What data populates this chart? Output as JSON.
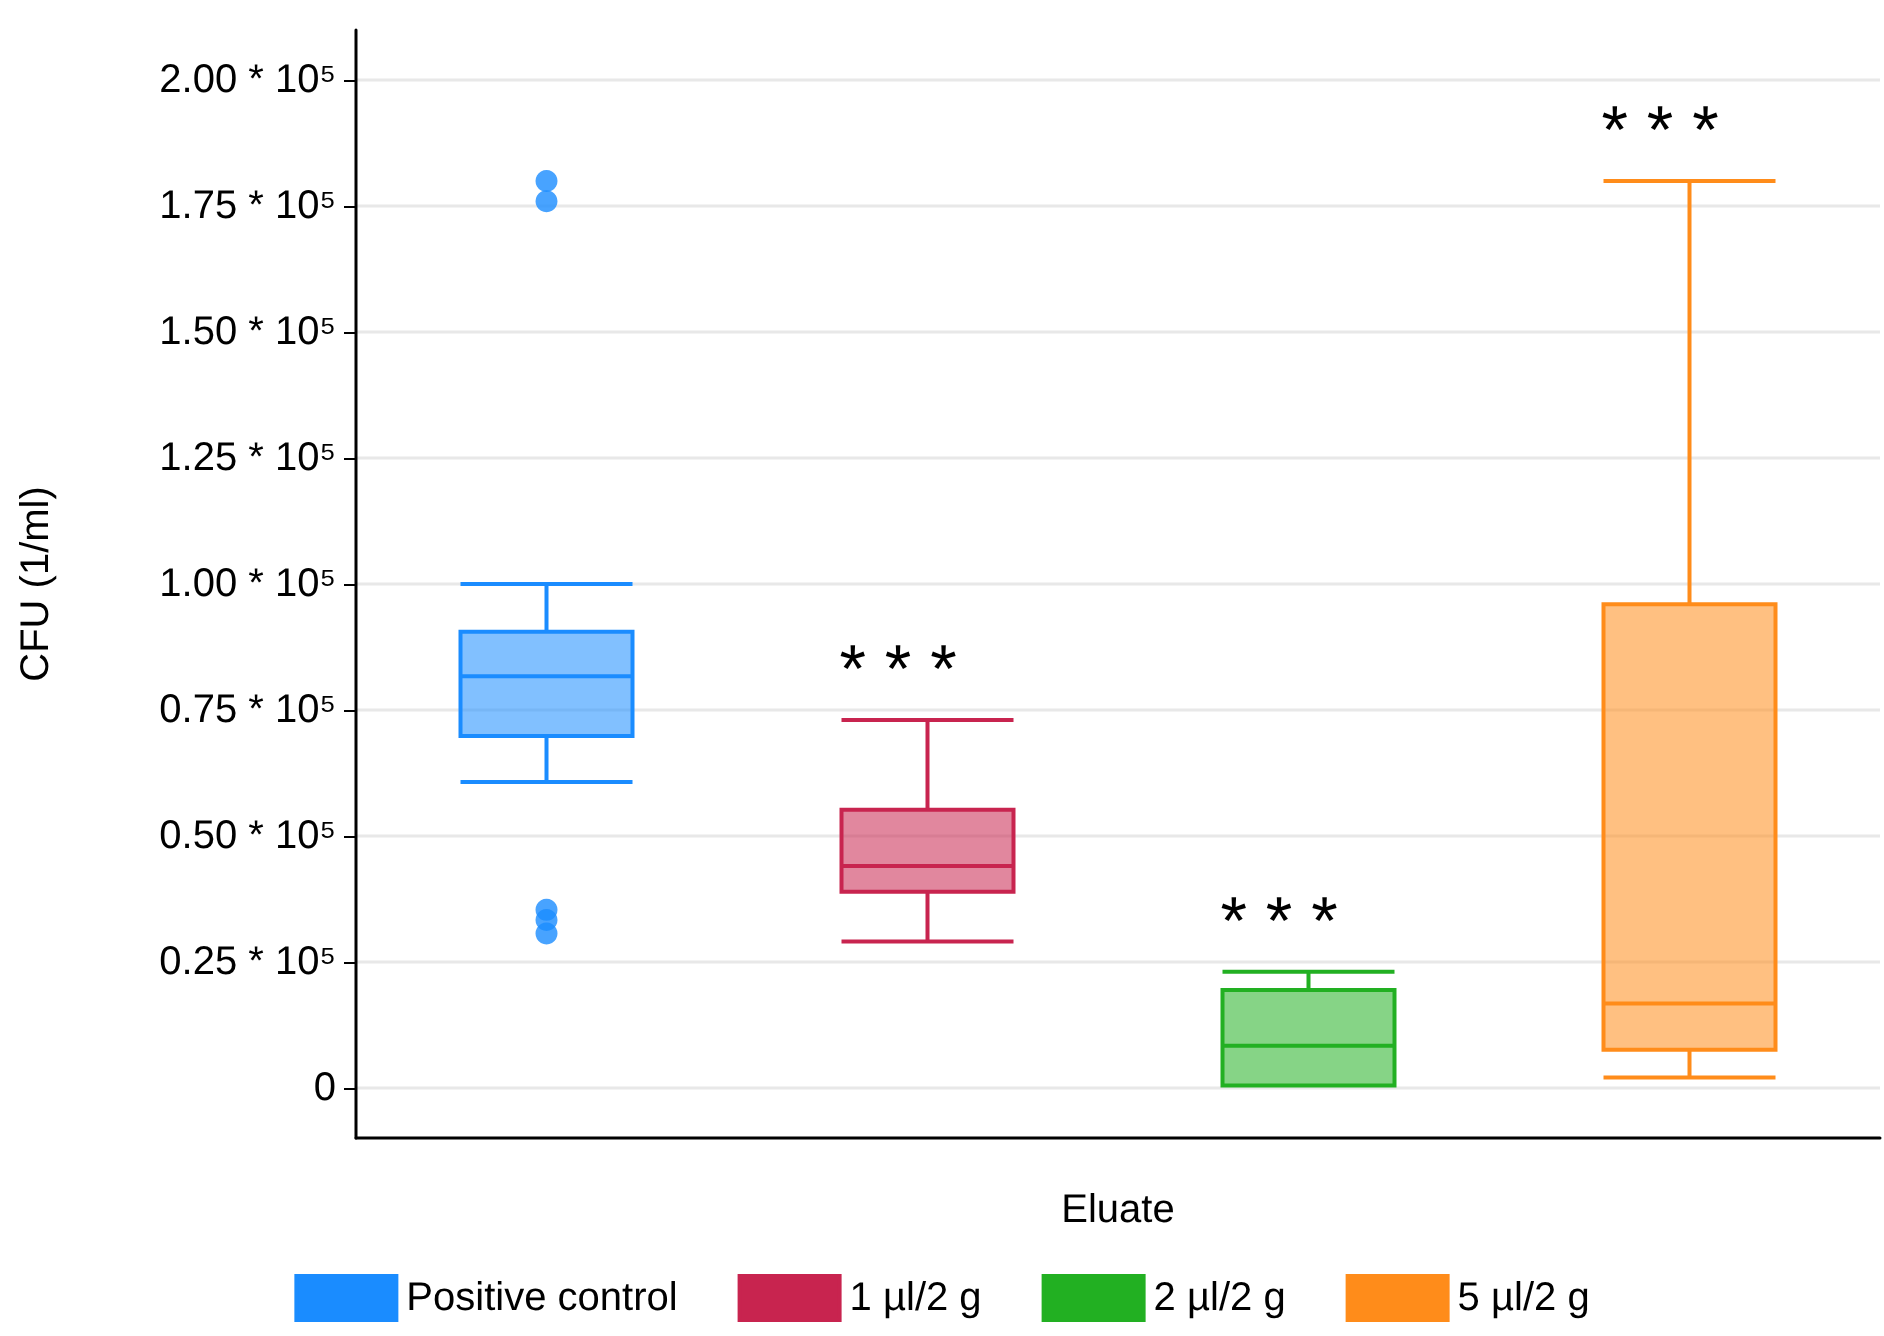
{
  "chart_data": {
    "type": "box",
    "xlabel": "Eluate",
    "ylabel": "CFU (1/ml)",
    "categories": [
      null,
      null,
      null,
      null
    ],
    "series": [
      {
        "name": "Positive control",
        "color": "#1a8cff",
        "boxes": [
          {
            "low": 60700,
            "q1": 69800,
            "median": 81700,
            "q3": 90500,
            "high": 100000,
            "outliers": [
              180000,
              176000,
              35300,
              33300,
              30600
            ]
          },
          null,
          null,
          null
        ]
      },
      {
        "name": "1 µl/2 g",
        "color": "#c8244f",
        "boxes": [
          null,
          {
            "low": 29000,
            "q1": 38900,
            "median": 44000,
            "q3": 55200,
            "high": 73000
          },
          null,
          null
        ]
      },
      {
        "name": "2 µl/2 g",
        "color": "#22b022",
        "boxes": [
          null,
          null,
          {
            "low": 400,
            "q1": 400,
            "median": 8300,
            "q3": 19400,
            "high": 23000
          },
          null
        ]
      },
      {
        "name": "5 µl/2 g",
        "color": "#ff8c1a",
        "boxes": [
          null,
          null,
          null,
          {
            "low": 2000,
            "q1": 7500,
            "median": 16700,
            "q3": 96000,
            "high": 180000
          }
        ]
      }
    ],
    "ylim": [
      -10000,
      210000
    ],
    "yticks": [
      0,
      {
        "value": 25000,
        "label": "0.25 * 10⁵"
      },
      {
        "value": 50000,
        "label": "0.50 * 10⁵"
      },
      {
        "value": 75000,
        "label": "0.75 * 10⁵"
      },
      {
        "value": 100000,
        "label": "1.00 * 10⁵"
      },
      {
        "value": 125000,
        "label": "1.25 * 10⁵"
      },
      {
        "value": 150000,
        "label": "1.50 * 10⁵"
      },
      {
        "value": 175000,
        "label": "1.75 * 10⁵"
      },
      {
        "value": 200000,
        "label": "2.00 * 10⁵"
      }
    ],
    "annotations": [
      "* * *",
      "* * *",
      "* * *"
    ],
    "grid": "y",
    "legend": "bottom"
  }
}
